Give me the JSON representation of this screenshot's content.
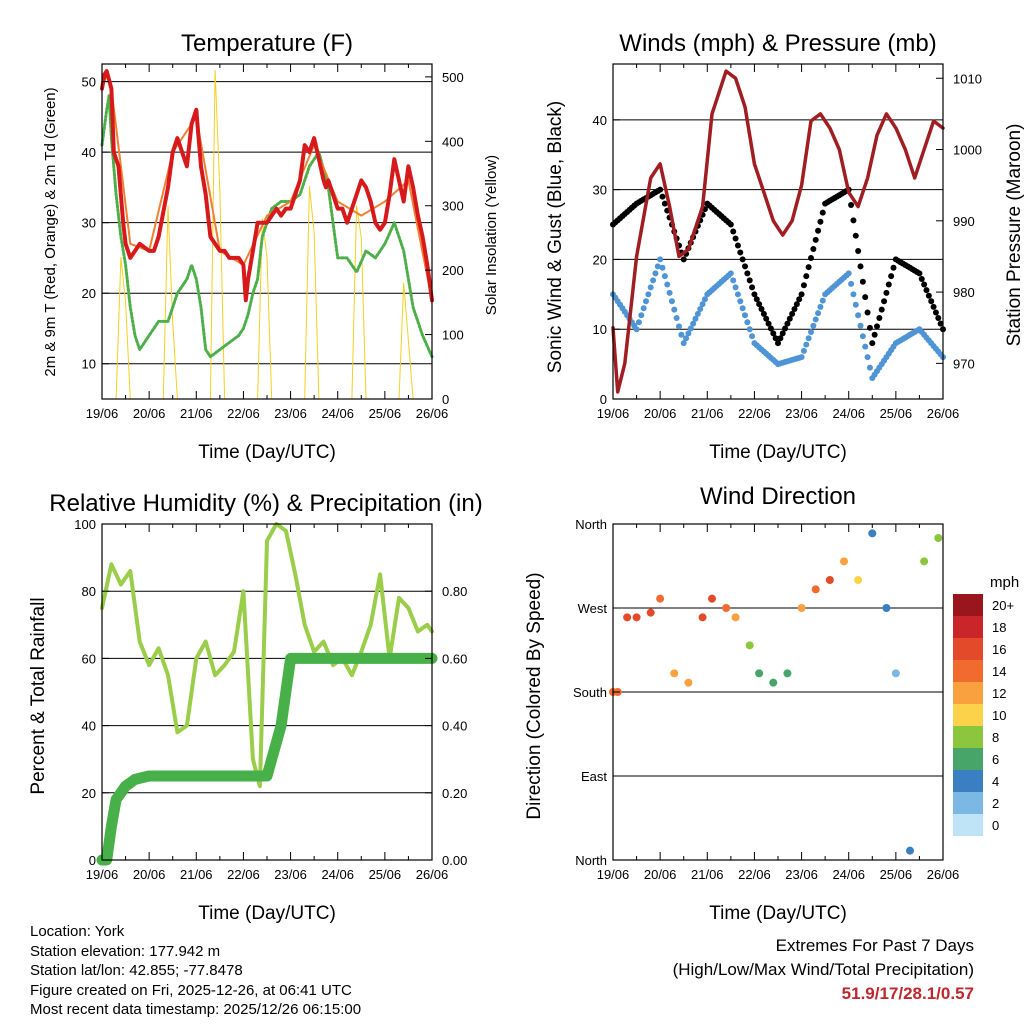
{
  "colors": {
    "temp_2m": "#d7191c",
    "temp_9m": "#f08030",
    "dewpoint": "#4daf4a",
    "solar": "#f5d020",
    "gust": "#000000",
    "wind": "#4f95d6",
    "pressure": "#a01e22",
    "rh": "#9acd4a",
    "precip": "#48b048"
  },
  "time_ticks": [
    "19/06",
    "20/06",
    "21/06",
    "22/06",
    "23/06",
    "24/06",
    "25/06",
    "26/06"
  ],
  "panels": {
    "temperature": {
      "title": "Temperature (F)",
      "xlabel": "Time (Day/UTC)",
      "ylabel_left": "2m & 9m T (Red, Orange) & 2m Td (Green)",
      "ylabel_right": "Solar Insolation (Yellow)"
    },
    "winds": {
      "title": "Winds (mph) & Pressure (mb)",
      "xlabel": "Time (Day/UTC)",
      "ylabel_left": "Sonic Wind & Gust (Blue, Black)",
      "ylabel_right": "Station Pressure (Maroon)"
    },
    "humidity": {
      "title": "Relative Humidity (%) & Precipitation (in)",
      "xlabel": "Time (Day/UTC)",
      "ylabel_left": "Percent & Total Rainfall"
    },
    "direction": {
      "title": "Wind Direction",
      "xlabel": "Time (Day/UTC)",
      "ylabel_left": "Direction (Colored By Speed)",
      "legend_title": "mph",
      "legend_labels": [
        "20+",
        "18",
        "16",
        "14",
        "12",
        "10",
        "8",
        "6",
        "4",
        "2",
        "0"
      ],
      "legend_colors": [
        "#99161d",
        "#c9252b",
        "#e34a2a",
        "#f26b2e",
        "#f9a03f",
        "#fcd24b",
        "#8cc63f",
        "#48a56a",
        "#3a7fc1",
        "#7bb8e3",
        "#bfe4f7"
      ]
    }
  },
  "chart_data": [
    {
      "type": "line",
      "title": "Temperature (F)",
      "xlabel": "Time (Day/UTC)",
      "ylabel": "2m & 9m T (Red, Orange) & 2m Td (Green)",
      "y2label": "Solar Insolation (Yellow)",
      "xlim": [
        0,
        7
      ],
      "ylim": [
        5,
        52.5
      ],
      "y_ticks": [
        10,
        20,
        30,
        40,
        50
      ],
      "y2lim": [
        0,
        520
      ],
      "y2_ticks": [
        0,
        100,
        200,
        300,
        400,
        500
      ],
      "series": [
        {
          "name": "2m T",
          "axis": "left",
          "x": [
            0,
            0.05,
            0.1,
            0.2,
            0.25,
            0.35,
            0.45,
            0.5,
            0.6,
            0.7,
            0.8,
            1.0,
            1.1,
            1.2,
            1.4,
            1.5,
            1.6,
            1.8,
            1.9,
            2.0,
            2.05,
            2.1,
            2.2,
            2.3,
            2.5,
            2.6,
            2.7,
            2.9,
            3.0,
            3.05,
            3.1,
            3.2,
            3.3,
            3.5,
            3.6,
            3.7,
            3.8,
            3.9,
            4.0,
            4.1,
            4.2,
            4.3,
            4.4,
            4.5,
            4.6,
            4.7,
            4.75,
            4.8,
            4.9,
            5.0,
            5.1,
            5.2,
            5.3,
            5.4,
            5.5,
            5.6,
            5.7,
            5.8,
            5.9,
            6.0,
            6.1,
            6.2,
            6.3,
            6.4,
            6.5,
            6.6,
            6.7,
            6.8,
            6.9,
            7.0
          ],
          "y": [
            49,
            51,
            51.5,
            49,
            40,
            38,
            30,
            27,
            25,
            26,
            27,
            26,
            26,
            28,
            35,
            40,
            42,
            38,
            44,
            46,
            42,
            38,
            34,
            28,
            26,
            26,
            25,
            25,
            24,
            19,
            22,
            26,
            30,
            30,
            31,
            32,
            31,
            32,
            32,
            34,
            36,
            41,
            40,
            42,
            39,
            36,
            35,
            36,
            34,
            32,
            32,
            30,
            32,
            34,
            36,
            35,
            33,
            30,
            29,
            30,
            34,
            39,
            36,
            33,
            38,
            35,
            31,
            28,
            24,
            19
          ]
        },
        {
          "name": "9m T",
          "axis": "left",
          "x": [
            0,
            0.1,
            0.2,
            0.4,
            0.6,
            1.0,
            1.5,
            2.0,
            2.5,
            3.0,
            3.5,
            4.0,
            4.5,
            5.0,
            5.5,
            6.0,
            6.5,
            7.0
          ],
          "y": [
            49,
            51,
            49,
            38,
            27,
            26,
            40,
            45,
            26,
            24,
            31,
            33,
            41,
            33,
            31,
            33,
            36,
            19
          ]
        },
        {
          "name": "2m Td",
          "axis": "left",
          "x": [
            0,
            0.1,
            0.15,
            0.2,
            0.3,
            0.4,
            0.5,
            0.6,
            0.7,
            0.8,
            1.0,
            1.2,
            1.4,
            1.5,
            1.6,
            1.8,
            1.9,
            2.0,
            2.1,
            2.2,
            2.3,
            2.5,
            2.7,
            2.9,
            3.0,
            3.1,
            3.2,
            3.3,
            3.4,
            3.5,
            3.6,
            3.8,
            4.0,
            4.2,
            4.4,
            4.6,
            4.8,
            5.0,
            5.2,
            5.4,
            5.6,
            5.8,
            6.0,
            6.2,
            6.4,
            6.5,
            6.6,
            6.8,
            7.0
          ],
          "y": [
            41,
            46,
            48,
            42,
            34,
            28,
            24,
            18,
            14,
            12,
            14,
            16,
            16,
            18,
            20,
            22,
            24,
            22,
            18,
            12,
            11,
            12,
            13,
            14,
            15,
            17,
            20,
            22,
            28,
            30,
            32,
            33,
            33,
            34,
            38,
            40,
            35,
            25,
            25,
            23,
            26,
            25,
            27,
            30,
            26,
            22,
            18,
            14,
            11
          ]
        },
        {
          "name": "Solar Insolation",
          "axis": "right",
          "x": [
            0.3,
            0.4,
            0.5,
            0.6,
            1.3,
            1.4,
            1.5,
            1.6,
            2.3,
            2.4,
            2.5,
            2.6,
            3.3,
            3.4,
            3.5,
            3.6,
            4.3,
            4.4,
            4.5,
            4.6,
            5.3,
            5.4,
            5.5,
            5.6,
            6.3,
            6.4,
            6.5,
            6.6
          ],
          "y": [
            0,
            220,
            150,
            0,
            0,
            300,
            120,
            0,
            0,
            510,
            320,
            0,
            0,
            280,
            220,
            0,
            0,
            330,
            260,
            0,
            0,
            300,
            250,
            0,
            0,
            180,
            90,
            0
          ]
        }
      ]
    },
    {
      "type": "scatter",
      "title": "Winds (mph) & Pressure (mb)",
      "xlabel": "Time (Day/UTC)",
      "ylabel": "Sonic Wind & Gust (Blue, Black)",
      "y2label": "Station Pressure (Maroon)",
      "xlim": [
        0,
        7
      ],
      "ylim": [
        0,
        48
      ],
      "y_ticks": [
        0,
        10,
        20,
        30,
        40
      ],
      "y2lim": [
        965,
        1012
      ],
      "y2_ticks": [
        970,
        980,
        990,
        1000,
        1010
      ],
      "series": [
        {
          "name": "Gust",
          "axis": "left",
          "x": [
            0,
            0.5,
            1.0,
            1.5,
            2.0,
            2.5,
            3.0,
            3.5,
            4.0,
            4.5,
            5.0,
            5.5,
            6.0,
            6.5,
            7.0
          ],
          "y": [
            25,
            28,
            30,
            20,
            28,
            25,
            15,
            8,
            15,
            28,
            30,
            8,
            20,
            18,
            10
          ]
        },
        {
          "name": "Wind",
          "axis": "left",
          "x": [
            0,
            0.5,
            1.0,
            1.5,
            2.0,
            2.5,
            3.0,
            3.5,
            4.0,
            4.5,
            5.0,
            5.5,
            6.0,
            6.5,
            7.0
          ],
          "y": [
            15,
            10,
            20,
            8,
            15,
            18,
            8,
            5,
            6,
            15,
            18,
            3,
            8,
            10,
            6
          ]
        },
        {
          "name": "Station Pressure",
          "axis": "right",
          "x": [
            0,
            0.1,
            0.25,
            0.5,
            0.8,
            1.0,
            1.2,
            1.4,
            1.6,
            1.9,
            2.1,
            2.4,
            2.6,
            2.8,
            3.0,
            3.2,
            3.4,
            3.6,
            3.8,
            4.0,
            4.2,
            4.4,
            4.6,
            4.8,
            5.0,
            5.2,
            5.4,
            5.6,
            5.8,
            6.0,
            6.2,
            6.4,
            6.6,
            6.8,
            7.0
          ],
          "y": [
            975,
            966,
            970,
            985,
            996,
            998,
            992,
            985,
            986,
            992,
            1005,
            1011,
            1010,
            1006,
            998,
            994,
            990,
            988,
            990,
            995,
            1004,
            1005,
            1003,
            1000,
            994,
            992,
            996,
            1002,
            1005,
            1003,
            1000,
            996,
            1000,
            1004,
            1003
          ]
        }
      ]
    },
    {
      "type": "line",
      "title": "Relative Humidity (%) & Precipitation (in)",
      "xlabel": "Time (Day/UTC)",
      "ylabel": "Percent & Total Rainfall",
      "xlim": [
        0,
        7
      ],
      "ylim": [
        0,
        100
      ],
      "y_ticks": [
        0,
        20,
        40,
        60,
        80,
        100
      ],
      "y2lim": [
        0,
        1.0
      ],
      "y2_ticks": [
        0.0,
        0.2,
        0.4,
        0.6,
        0.8
      ],
      "y2_tick_labels": [
        "0.00",
        "0.20",
        "0.40",
        "0.60",
        "0.80"
      ],
      "series": [
        {
          "name": "Relative Humidity",
          "axis": "left",
          "x": [
            0,
            0.2,
            0.4,
            0.6,
            0.8,
            1.0,
            1.2,
            1.4,
            1.6,
            1.8,
            2.0,
            2.2,
            2.4,
            2.6,
            2.8,
            3.0,
            3.2,
            3.35,
            3.5,
            3.7,
            3.9,
            4.1,
            4.3,
            4.5,
            4.7,
            4.9,
            5.1,
            5.3,
            5.5,
            5.7,
            5.9,
            6.1,
            6.3,
            6.5,
            6.7,
            6.9,
            7.0
          ],
          "y": [
            75,
            88,
            82,
            86,
            65,
            58,
            63,
            55,
            38,
            40,
            60,
            65,
            55,
            58,
            62,
            80,
            30,
            22,
            95,
            100,
            98,
            85,
            70,
            62,
            65,
            58,
            60,
            55,
            62,
            70,
            85,
            60,
            78,
            75,
            68,
            70,
            68
          ]
        },
        {
          "name": "Total Precipitation",
          "axis": "right",
          "x": [
            0,
            0.1,
            0.2,
            0.3,
            0.5,
            0.7,
            1.0,
            2.0,
            3.0,
            3.3,
            3.5,
            3.8,
            4.0,
            5.0,
            6.0,
            7.0
          ],
          "y": [
            0.0,
            0.0,
            0.1,
            0.18,
            0.22,
            0.24,
            0.25,
            0.25,
            0.25,
            0.25,
            0.25,
            0.4,
            0.6,
            0.6,
            0.6,
            0.6
          ]
        }
      ]
    },
    {
      "type": "scatter",
      "title": "Wind Direction",
      "xlabel": "Time (Day/UTC)",
      "ylabel": "Direction (Colored By Speed)",
      "xlim": [
        0,
        7
      ],
      "ylim": [
        0,
        360
      ],
      "y_ticks": [
        0,
        90,
        180,
        270,
        360
      ],
      "y_tick_labels": [
        "North",
        "East",
        "South",
        "West",
        "North"
      ],
      "series": [
        {
          "name": "Wind Direction",
          "x": [
            0,
            0.1,
            0.3,
            0.5,
            0.8,
            1.0,
            1.3,
            1.6,
            1.9,
            2.1,
            2.4,
            2.6,
            2.9,
            3.1,
            3.4,
            3.7,
            4.0,
            4.3,
            4.6,
            4.9,
            5.2,
            5.5,
            5.8,
            6.0,
            6.3,
            6.6,
            6.9
          ],
          "y": [
            180,
            180,
            260,
            260,
            265,
            280,
            200,
            190,
            260,
            280,
            270,
            260,
            230,
            200,
            190,
            200,
            270,
            290,
            300,
            320,
            300,
            350,
            270,
            200,
            10,
            320,
            345
          ],
          "speed": [
            15,
            15,
            16,
            16,
            17,
            15,
            12,
            12,
            17,
            16,
            14,
            12,
            8,
            6,
            7,
            6,
            12,
            15,
            16,
            12,
            10,
            4,
            4,
            3,
            4,
            8,
            8
          ]
        }
      ]
    }
  ],
  "info": {
    "location": "Location: York",
    "elevation": "Station elevation: 177.942 m",
    "latlon": "Station lat/lon: 42.855; -77.8478",
    "created": "Figure created on Fri, 2025-12-26, at 06:41 UTC",
    "recent": "Most recent data timestamp: 2025/12/26 06:15:00"
  },
  "extremes": {
    "title": "Extremes For Past 7 Days",
    "subtitle": "(High/Low/Max Wind/Total Precipitation)",
    "values": "51.9/17/28.1/0.57"
  }
}
